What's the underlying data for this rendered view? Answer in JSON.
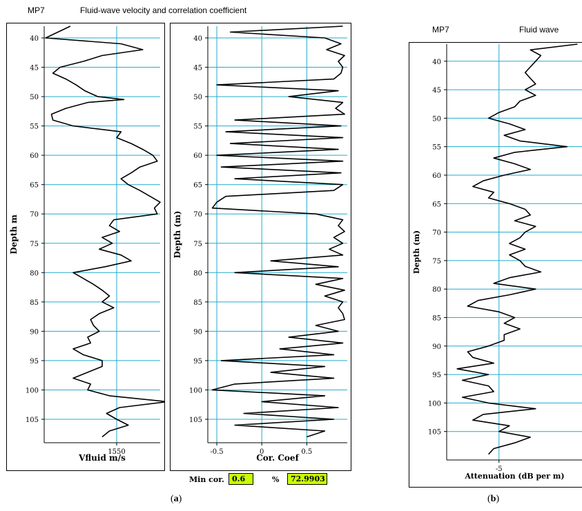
{
  "header_left": {
    "mp": "MP7",
    "title": "Fluid-wave velocity and correlation coefficient"
  },
  "header_right": {
    "mp": "MP7",
    "title": "Fluid wave"
  },
  "min_cor": {
    "label": "Min cor.",
    "value": "0.6",
    "pct_label": "%",
    "pct_value": "72.9903"
  },
  "captions": {
    "a": "a",
    "b": "b"
  },
  "colors": {
    "grid": "#22aacc",
    "trace": "#000000",
    "highlight": "#c8ff00"
  },
  "chart_data": [
    {
      "type": "line",
      "title": "",
      "xlabel": "Vfluid m/s",
      "ylabel": "Depth m",
      "orientation": "depth-down",
      "xlim": [
        1500,
        1580
      ],
      "ylim": [
        38,
        109
      ],
      "x_ticks": [
        "1550"
      ],
      "y_ticks": [
        "40",
        "45",
        "50",
        "55",
        "60",
        "65",
        "70",
        "75",
        "80",
        "85",
        "90",
        "95",
        "100",
        "105"
      ],
      "grid": true,
      "series": [
        {
          "depth": [
            38,
            40,
            41,
            42,
            43,
            44,
            45,
            46,
            47,
            48,
            49,
            50,
            50.5,
            51,
            52,
            53,
            54,
            55,
            56,
            57,
            58,
            59,
            60,
            61,
            62,
            63,
            64,
            65,
            66,
            67,
            68,
            69,
            70,
            71,
            72,
            73,
            74,
            75,
            76,
            77,
            78,
            79,
            80,
            81,
            82,
            83,
            84,
            85,
            86,
            87,
            88,
            89,
            90,
            91,
            92,
            93,
            94,
            95,
            96,
            97,
            98,
            99,
            100,
            101,
            102,
            103,
            104,
            105,
            106,
            107,
            108
          ],
          "values": [
            1518,
            1501,
            1553,
            1568,
            1540,
            1527,
            1511,
            1506,
            1515,
            1522,
            1528,
            1537,
            1555,
            1530,
            1515,
            1505,
            1506,
            1520,
            1553,
            1550,
            1560,
            1568,
            1575,
            1578,
            1566,
            1560,
            1553,
            1558,
            1566,
            1573,
            1580,
            1576,
            1578,
            1548,
            1545,
            1552,
            1540,
            1547,
            1538,
            1553,
            1560,
            1542,
            1520,
            1527,
            1534,
            1540,
            1545,
            1540,
            1548,
            1538,
            1532,
            1534,
            1538,
            1530,
            1532,
            1520,
            1527,
            1540,
            1540,
            1530,
            1520,
            1532,
            1530,
            1545,
            1585,
            1552,
            1543,
            1550,
            1558,
            1545,
            1540
          ]
        }
      ]
    },
    {
      "type": "line",
      "title": "",
      "xlabel": "Cor. Coef",
      "ylabel": "Depth (m)",
      "orientation": "depth-down",
      "xlim": [
        -0.6,
        0.95
      ],
      "ylim": [
        38,
        109
      ],
      "x_ticks": [
        "-0.5",
        "0",
        "0.5"
      ],
      "y_ticks": [
        "40",
        "45",
        "50",
        "55",
        "60",
        "65",
        "70",
        "75",
        "80",
        "85",
        "90",
        "95",
        "100",
        "105"
      ],
      "grid": true,
      "series": [
        {
          "depth": [
            38,
            39,
            40,
            41,
            42,
            43,
            44,
            45,
            46,
            47,
            48,
            49,
            50,
            51,
            52,
            53,
            54,
            55,
            56,
            57,
            58,
            59,
            60,
            61,
            62,
            63,
            64,
            65,
            66,
            67,
            68,
            69,
            70,
            71,
            72,
            73,
            74,
            75,
            76,
            77,
            78,
            79,
            80,
            81,
            82,
            83,
            84,
            85,
            86,
            87,
            88,
            89,
            90,
            91,
            92,
            93,
            94,
            95,
            96,
            97,
            98,
            99,
            100,
            101,
            102,
            103,
            104,
            105,
            106,
            107,
            108
          ],
          "values": [
            0.9,
            -0.35,
            0.7,
            0.88,
            0.72,
            0.92,
            0.85,
            0.9,
            0.88,
            0.8,
            -0.5,
            0.85,
            0.3,
            0.9,
            0.82,
            0.92,
            -0.3,
            0.88,
            -0.4,
            0.9,
            -0.35,
            0.85,
            -0.5,
            0.9,
            -0.45,
            0.88,
            -0.3,
            0.9,
            0.8,
            -0.4,
            -0.5,
            -0.55,
            0.6,
            0.9,
            0.85,
            0.92,
            0.8,
            0.9,
            0.75,
            0.9,
            0.1,
            0.85,
            -0.3,
            0.9,
            0.6,
            0.92,
            0.7,
            0.9,
            0.85,
            0.9,
            0.92,
            0.6,
            0.85,
            0.3,
            0.9,
            0.2,
            0.8,
            -0.45,
            0.7,
            0.1,
            0.8,
            -0.3,
            -0.55,
            0.7,
            0.0,
            0.85,
            -0.2,
            0.8,
            -0.3,
            0.7,
            0.5
          ]
        }
      ]
    },
    {
      "type": "line",
      "title": "",
      "xlabel": "Attenuation (dB per m)",
      "ylabel": "Depth (m)",
      "orientation": "depth-down",
      "xlim": [
        -10,
        3
      ],
      "ylim": [
        37,
        110
      ],
      "x_ticks": [
        "-5"
      ],
      "y_ticks": [
        "40",
        "45",
        "50",
        "55",
        "60",
        "65",
        "70",
        "75",
        "80",
        "85",
        "90",
        "95",
        "100",
        "105"
      ],
      "grid": true,
      "series": [
        {
          "depth": [
            37,
            38,
            39,
            40,
            41,
            42,
            43,
            44,
            45,
            46,
            47,
            48,
            49,
            50,
            51,
            52,
            53,
            54,
            55,
            56,
            57,
            58,
            59,
            60,
            61,
            62,
            63,
            64,
            65,
            66,
            67,
            68,
            69,
            70,
            71,
            72,
            73,
            74,
            75,
            76,
            77,
            78,
            79,
            80,
            81,
            82,
            83,
            84,
            85,
            86,
            87,
            88,
            89,
            90,
            91,
            92,
            93,
            94,
            95,
            96,
            97,
            98,
            99,
            100,
            101,
            102,
            103,
            104,
            105,
            106,
            107,
            108,
            109
          ],
          "values": [
            2.5,
            -2,
            -1,
            -1.5,
            -2,
            -2.5,
            -2,
            -1.5,
            -2.5,
            -1.5,
            -3,
            -3.5,
            -5,
            -6,
            -4,
            -2.5,
            -4.5,
            -3,
            1.5,
            -3.5,
            -5.5,
            -3.5,
            -2,
            -4.5,
            -6.5,
            -7.5,
            -5.5,
            -6,
            -4,
            -2.5,
            -2,
            -3.5,
            -1.5,
            -2.5,
            -3,
            -4,
            -2.5,
            -4,
            -3,
            -2.5,
            -1,
            -4,
            -5.5,
            -1.5,
            -4,
            -7,
            -8,
            -5,
            -3.5,
            -4.5,
            -3,
            -4.5,
            -4.5,
            -6,
            -8,
            -7.5,
            -5.5,
            -9,
            -6,
            -8.5,
            -6,
            -5.5,
            -8.5,
            -6,
            -1.5,
            -6.5,
            -7.5,
            -4,
            -5,
            -2,
            -3.5,
            -5.5,
            -6
          ]
        }
      ]
    }
  ]
}
